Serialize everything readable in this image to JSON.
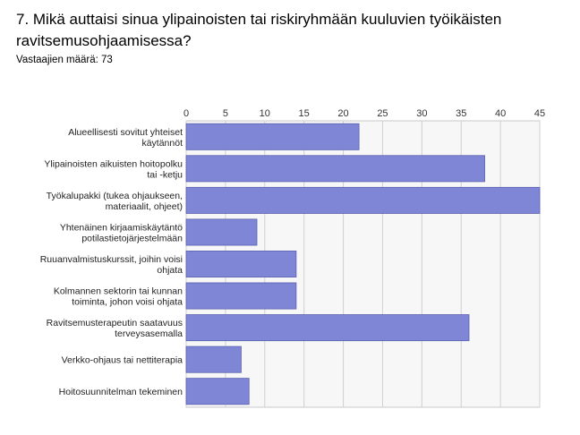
{
  "title": "7. Mikä auttaisi sinua ylipainoisten tai riskiryhmään kuuluvien työikäisten ravitsemusohjaamisessa?",
  "subtitle": "Vastaajien määrä: 73",
  "colors": {
    "bar": "#7f86d6",
    "bar_border": "#5a60b0",
    "grid": "#d0d0d0",
    "plot_bg": "#f7f7f7"
  },
  "chart_data": {
    "type": "bar",
    "orientation": "horizontal",
    "xlim": [
      0,
      45
    ],
    "ticks": [
      0,
      5,
      10,
      15,
      20,
      25,
      30,
      35,
      40,
      45
    ],
    "grid": true,
    "categories": [
      [
        "Alueellisesti sovitut yhteiset",
        "käytännöt"
      ],
      [
        "Ylipainoisten aikuisten hoitopolku",
        "tai -ketju"
      ],
      [
        "Työkalupakki (tukea ohjaukseen,",
        "materiaalit, ohjeet)"
      ],
      [
        "Yhtenäinen kirjaamiskäytäntö",
        "potilastietojärjestelmään"
      ],
      [
        "Ruuanvalmistuskurssit, joihin voisi",
        "ohjata"
      ],
      [
        "Kolmannen sektorin tai kunnan",
        "toiminta, johon voisi ohjata"
      ],
      [
        "Ravitsemusterapeutin saatavuus",
        "terveysasemalla"
      ],
      [
        "Verkko-ohjaus tai nettiterapia"
      ],
      [
        "Hoitosuunnitelman tekeminen"
      ]
    ],
    "values": [
      22,
      38,
      45,
      9,
      14,
      14,
      36,
      7,
      8
    ]
  }
}
